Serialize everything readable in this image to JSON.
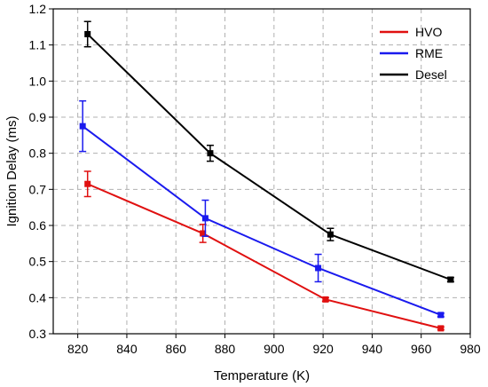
{
  "chart_data": {
    "type": "line",
    "xlabel": "Temperature (K)",
    "ylabel": "Ignition Delay (ms)",
    "xlim": [
      810,
      980
    ],
    "ylim": [
      0.3,
      1.2
    ],
    "xticks": [
      820,
      840,
      860,
      880,
      900,
      920,
      940,
      960,
      980
    ],
    "yticks": [
      0.3,
      0.4,
      0.5,
      0.6,
      0.7,
      0.8,
      0.9,
      1.0,
      1.1,
      1.2
    ],
    "xtick_labels": [
      "820",
      "840",
      "860",
      "880",
      "900",
      "920",
      "940",
      "960",
      "980"
    ],
    "ytick_labels": [
      "0.3",
      "0.4",
      "0.5",
      "0.6",
      "0.7",
      "0.8",
      "0.9",
      "1.0",
      "1.1",
      "1.2"
    ],
    "grid": true,
    "legend_position": "top-right",
    "series": [
      {
        "name": "HVO",
        "color": "#e01010",
        "x": [
          824,
          871,
          921,
          968
        ],
        "y": [
          0.715,
          0.578,
          0.395,
          0.315
        ],
        "err": [
          0.035,
          0.025,
          0.005,
          0.004
        ]
      },
      {
        "name": "RME",
        "color": "#1a1aee",
        "x": [
          822,
          872,
          918,
          968
        ],
        "y": [
          0.875,
          0.62,
          0.482,
          0.352
        ],
        "err": [
          0.07,
          0.05,
          0.038,
          0.005
        ]
      },
      {
        "name": "Desel",
        "color": "#000000",
        "x": [
          824,
          874,
          923,
          972
        ],
        "y": [
          1.13,
          0.8,
          0.575,
          0.45
        ],
        "err": [
          0.035,
          0.022,
          0.017,
          0.006
        ]
      }
    ]
  }
}
